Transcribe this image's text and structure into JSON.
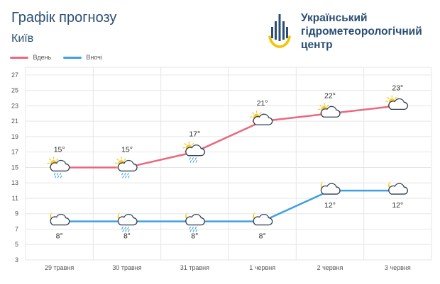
{
  "header": {
    "title": "Графік прогнозу",
    "city": "Київ"
  },
  "org": {
    "line1": "Український",
    "line2": "гідрометеорологічний",
    "line3": "центр"
  },
  "colors": {
    "day": "#e8697f",
    "night": "#3ea0dc",
    "grid": "#e6e6e6",
    "text": "#2b4e74",
    "logo_blue": "#2b4e74",
    "logo_yellow": "#f2c500"
  },
  "chart_data": {
    "type": "line",
    "categories": [
      "29 травня",
      "30 травня",
      "31 травня",
      "1 червня",
      "2 червня",
      "3 червня"
    ],
    "series": [
      {
        "name": "Вдень",
        "values": [
          15,
          15,
          17,
          21,
          22,
          23
        ],
        "labels": [
          "15°",
          "15°",
          "17°",
          "21°",
          "22°",
          "23°"
        ],
        "icons": [
          "sun-cloud-rain-icon",
          "sun-cloud-rain-icon",
          "sun-cloud-rain-icon",
          "sun-cloud-icon",
          "sun-cloud-icon",
          "sun-cloud-icon"
        ]
      },
      {
        "name": "Вночі",
        "values": [
          8,
          8,
          8,
          8,
          12,
          12
        ],
        "labels": [
          "8°",
          "8°",
          "8°",
          "8°",
          "12°",
          "12°"
        ],
        "icons": [
          "moon-cloud-icon",
          "moon-cloud-rain-icon",
          "moon-cloud-rain-icon",
          "moon-cloud-icon",
          "moon-cloud-icon",
          "moon-cloud-icon"
        ]
      }
    ],
    "yticks": [
      3,
      5,
      7,
      9,
      11,
      13,
      15,
      17,
      19,
      21,
      23,
      25,
      27
    ],
    "ylim": [
      3,
      28
    ],
    "grid": true,
    "legend": "top-left"
  }
}
